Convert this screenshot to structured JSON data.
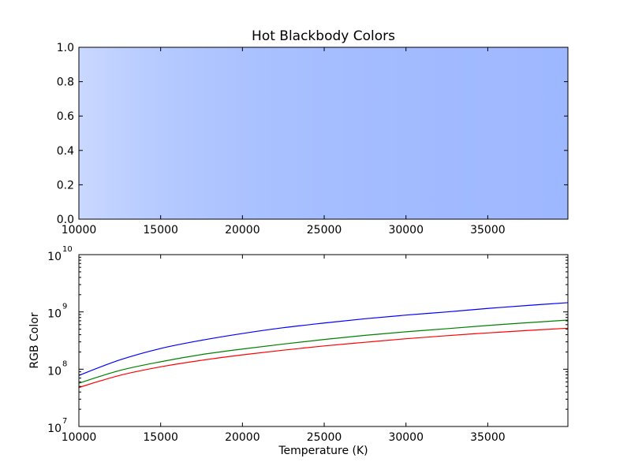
{
  "chart_data": [
    {
      "type": "heatmap",
      "title": "Hot Blackbody Colors",
      "xlabel": "",
      "ylabel": "",
      "xlim": [
        10000,
        39900
      ],
      "ylim": [
        0,
        1
      ],
      "x_ticks": [
        "10000",
        "15000",
        "20000",
        "25000",
        "30000",
        "35000"
      ],
      "y_ticks": [
        "0.0",
        "0.2",
        "0.4",
        "0.6",
        "0.8",
        "1.0"
      ],
      "color_stops": [
        {
          "x": 10000,
          "color": "#cad8ff"
        },
        {
          "x": 13000,
          "color": "#bccfff"
        },
        {
          "x": 16000,
          "color": "#b3c8ff"
        },
        {
          "x": 20000,
          "color": "#abc2ff"
        },
        {
          "x": 25000,
          "color": "#a5beff"
        },
        {
          "x": 30000,
          "color": "#a2bbff"
        },
        {
          "x": 35000,
          "color": "#a0b9ff"
        },
        {
          "x": 39900,
          "color": "#9eb8ff"
        }
      ]
    },
    {
      "type": "line",
      "title": "",
      "xlabel": "Temperature (K)",
      "ylabel": "RGB Color",
      "y_scale": "log",
      "xlim": [
        10000,
        39900
      ],
      "ylim": [
        10000000,
        10000000000
      ],
      "x_ticks": [
        "10000",
        "15000",
        "20000",
        "25000",
        "30000",
        "35000"
      ],
      "y_ticks": [
        {
          "base": "10",
          "exp": "7",
          "value": 10000000
        },
        {
          "base": "10",
          "exp": "8",
          "value": 100000000
        },
        {
          "base": "10",
          "exp": "9",
          "value": 1000000000
        },
        {
          "base": "10",
          "exp": "10",
          "value": 10000000000
        }
      ],
      "x": [
        10000,
        12500,
        15000,
        17500,
        20000,
        22500,
        25000,
        27500,
        30000,
        32500,
        35000,
        37500,
        39900
      ],
      "series": [
        {
          "color": "#0000ff",
          "values": [
            78000000,
            145000000,
            230000000,
            320000000,
            420000000,
            530000000,
            640000000,
            760000000,
            880000000,
            1000000000,
            1150000000,
            1300000000,
            1450000000
          ]
        },
        {
          "color": "#008000",
          "values": [
            57000000,
            95000000,
            135000000,
            180000000,
            225000000,
            275000000,
            330000000,
            390000000,
            450000000,
            510000000,
            580000000,
            650000000,
            720000000
          ]
        },
        {
          "color": "#ff0000",
          "values": [
            48000000,
            78000000,
            110000000,
            143000000,
            178000000,
            215000000,
            255000000,
            295000000,
            340000000,
            385000000,
            430000000,
            475000000,
            520000000
          ]
        }
      ]
    }
  ]
}
